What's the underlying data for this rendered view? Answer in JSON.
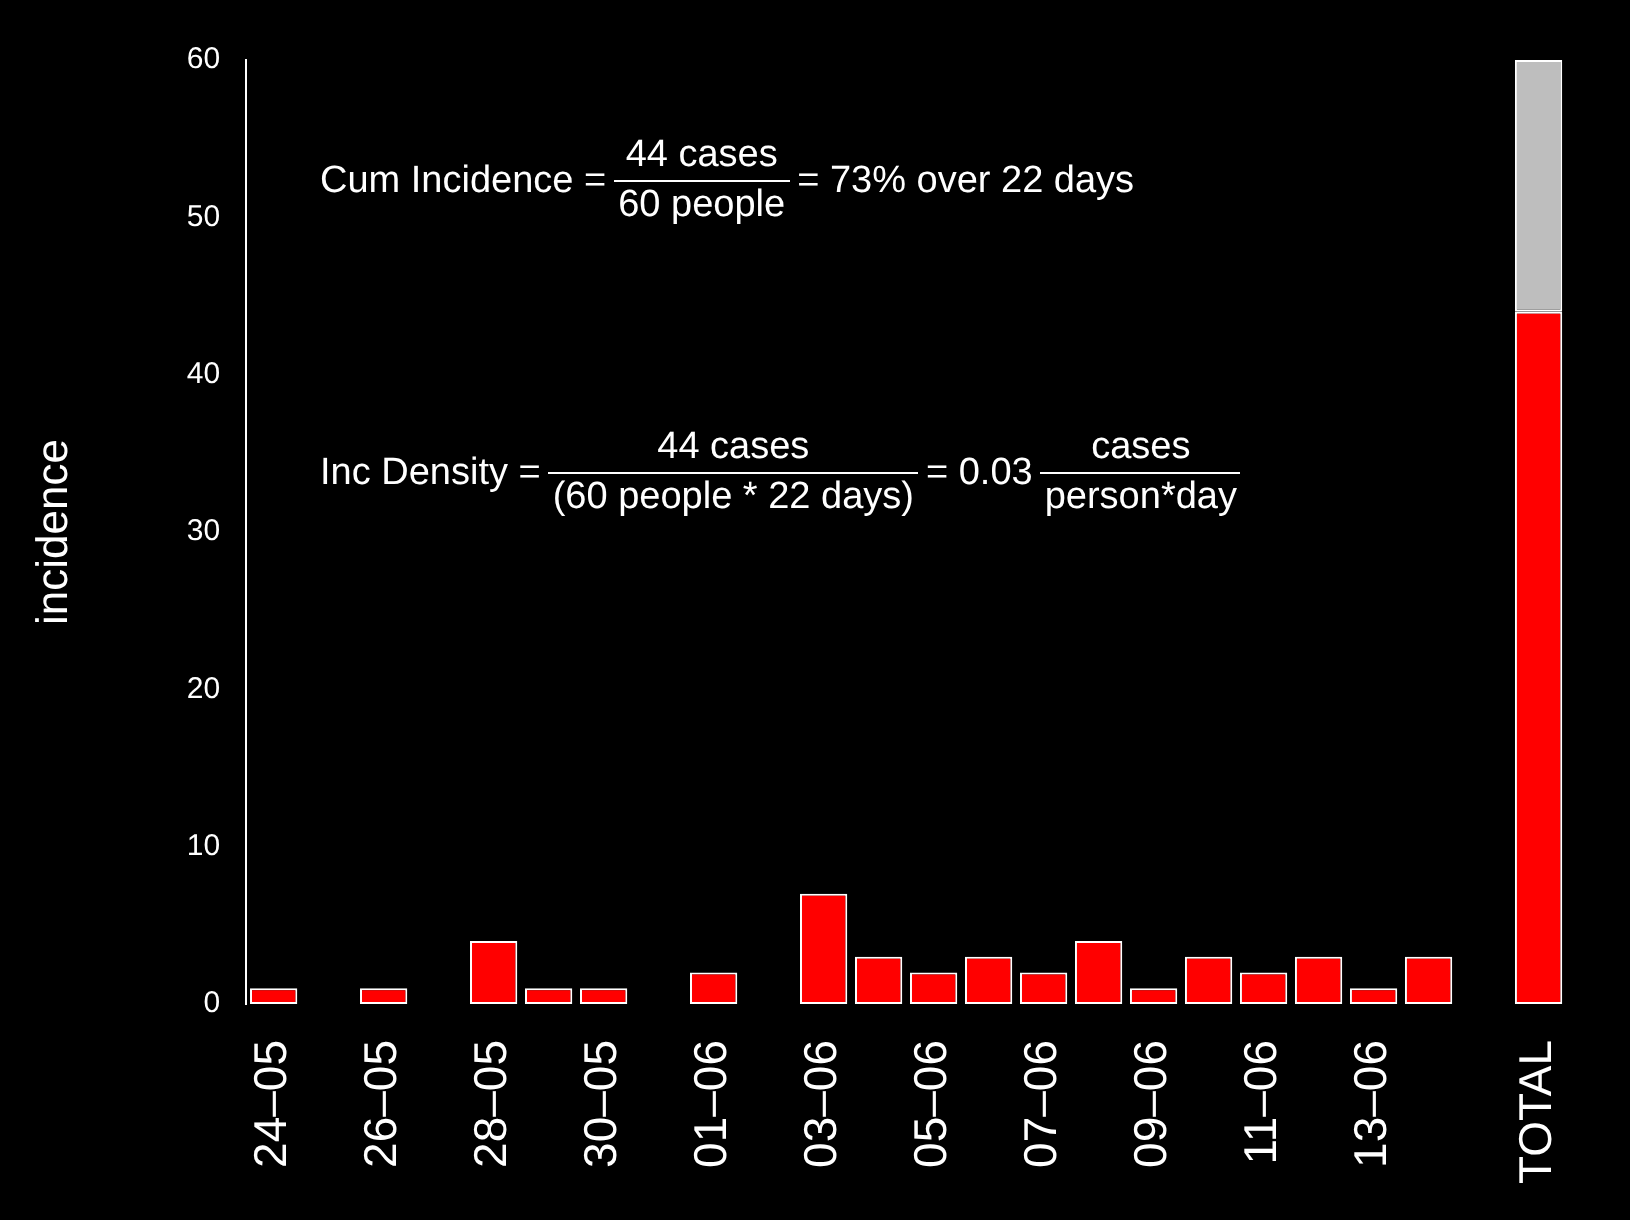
{
  "chart_data": {
    "type": "bar",
    "stacked": true,
    "ylabel": "incidence",
    "categories": [
      "24–05",
      null,
      "26–05",
      null,
      "28–05",
      null,
      "30–05",
      null,
      "01–06",
      null,
      "03–06",
      null,
      "05–06",
      null,
      "07–06",
      null,
      "09–06",
      null,
      "11–06",
      null,
      "13–06",
      null,
      null,
      "TOTAL"
    ],
    "series": [
      {
        "color": "#ff0000",
        "values": [
          1,
          0,
          1,
          0,
          4,
          1,
          1,
          0,
          2,
          0,
          7,
          3,
          2,
          3,
          2,
          4,
          1,
          3,
          2,
          3,
          1,
          3,
          0,
          44
        ]
      },
      {
        "color": "#bebebe",
        "values": [
          null,
          null,
          null,
          null,
          null,
          null,
          null,
          null,
          null,
          null,
          null,
          null,
          null,
          null,
          null,
          null,
          null,
          null,
          null,
          null,
          null,
          null,
          null,
          16
        ]
      }
    ],
    "ylim": [
      0,
      60
    ],
    "yticks": [
      0,
      10,
      20,
      30,
      40,
      50,
      60
    ],
    "grid": false,
    "legend": false,
    "annotations": [
      "Cum Incidence =",
      "44 cases",
      "60 people",
      "= 73% over 22 days",
      "Inc Density =",
      "44 cases",
      "(60 people * 22 days)",
      "= 0.03",
      "cases",
      "person*day"
    ]
  }
}
